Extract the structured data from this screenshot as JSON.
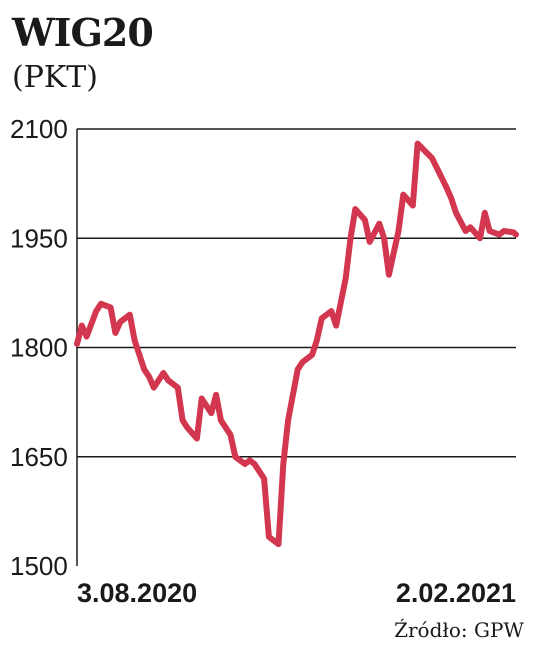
{
  "header": {
    "title": "WIG20",
    "subtitle": "(PKT)"
  },
  "footer": {
    "source": "Źródło: GPW"
  },
  "colors": {
    "line": "#d2374f",
    "grid": "#1a1a1a"
  },
  "chart_data": {
    "type": "line",
    "title": "WIG20",
    "ylabel": "(PKT)",
    "xlabel": "",
    "ylim": [
      1500,
      2100
    ],
    "yticks": [
      1500,
      1650,
      1800,
      1950,
      2100
    ],
    "ytick_labels": [
      "1500",
      "1650",
      "1800",
      "1950",
      "2100"
    ],
    "xtick_labels": [
      "3.08.2020",
      "2.02.2021"
    ],
    "x": [
      "2020-08-03",
      "2020-08-05",
      "2020-08-07",
      "2020-08-11",
      "2020-08-13",
      "2020-08-17",
      "2020-08-19",
      "2020-08-21",
      "2020-08-25",
      "2020-08-27",
      "2020-08-31",
      "2020-09-02",
      "2020-09-04",
      "2020-09-08",
      "2020-09-10",
      "2020-09-14",
      "2020-09-16",
      "2020-09-18",
      "2020-09-22",
      "2020-09-24",
      "2020-09-28",
      "2020-09-30",
      "2020-10-02",
      "2020-10-06",
      "2020-10-08",
      "2020-10-12",
      "2020-10-14",
      "2020-10-16",
      "2020-10-20",
      "2020-10-22",
      "2020-10-26",
      "2020-10-28",
      "2020-10-30",
      "2020-11-03",
      "2020-11-05",
      "2020-11-09",
      "2020-11-11",
      "2020-11-13",
      "2020-11-17",
      "2020-11-19",
      "2020-11-23",
      "2020-11-25",
      "2020-11-27",
      "2020-12-01",
      "2020-12-03",
      "2020-12-07",
      "2020-12-09",
      "2020-12-11",
      "2020-12-15",
      "2020-12-17",
      "2020-12-21",
      "2020-12-23",
      "2020-12-29",
      "2021-01-04",
      "2021-01-06",
      "2021-01-08",
      "2021-01-12",
      "2021-01-14",
      "2021-01-18",
      "2021-01-20",
      "2021-01-22",
      "2021-01-26",
      "2021-01-28",
      "2021-02-01",
      "2021-02-02"
    ],
    "series": [
      {
        "values": [
          1805,
          1830,
          1815,
          1850,
          1860,
          1855,
          1820,
          1835,
          1845,
          1810,
          1770,
          1760,
          1745,
          1765,
          1755,
          1745,
          1700,
          1690,
          1675,
          1730,
          1710,
          1735,
          1700,
          1680,
          1650,
          1640,
          1645,
          1640,
          1620,
          1540,
          1530,
          1640,
          1700,
          1770,
          1780,
          1790,
          1810,
          1840,
          1850,
          1830,
          1895,
          1950,
          1990,
          1975,
          1945,
          1970,
          1950,
          1900,
          1960,
          2010,
          1995,
          2080,
          2060,
          2020,
          2005,
          1985,
          1960,
          1965,
          1950,
          1985,
          1960,
          1955,
          1960,
          1958,
          1955
        ]
      }
    ]
  }
}
